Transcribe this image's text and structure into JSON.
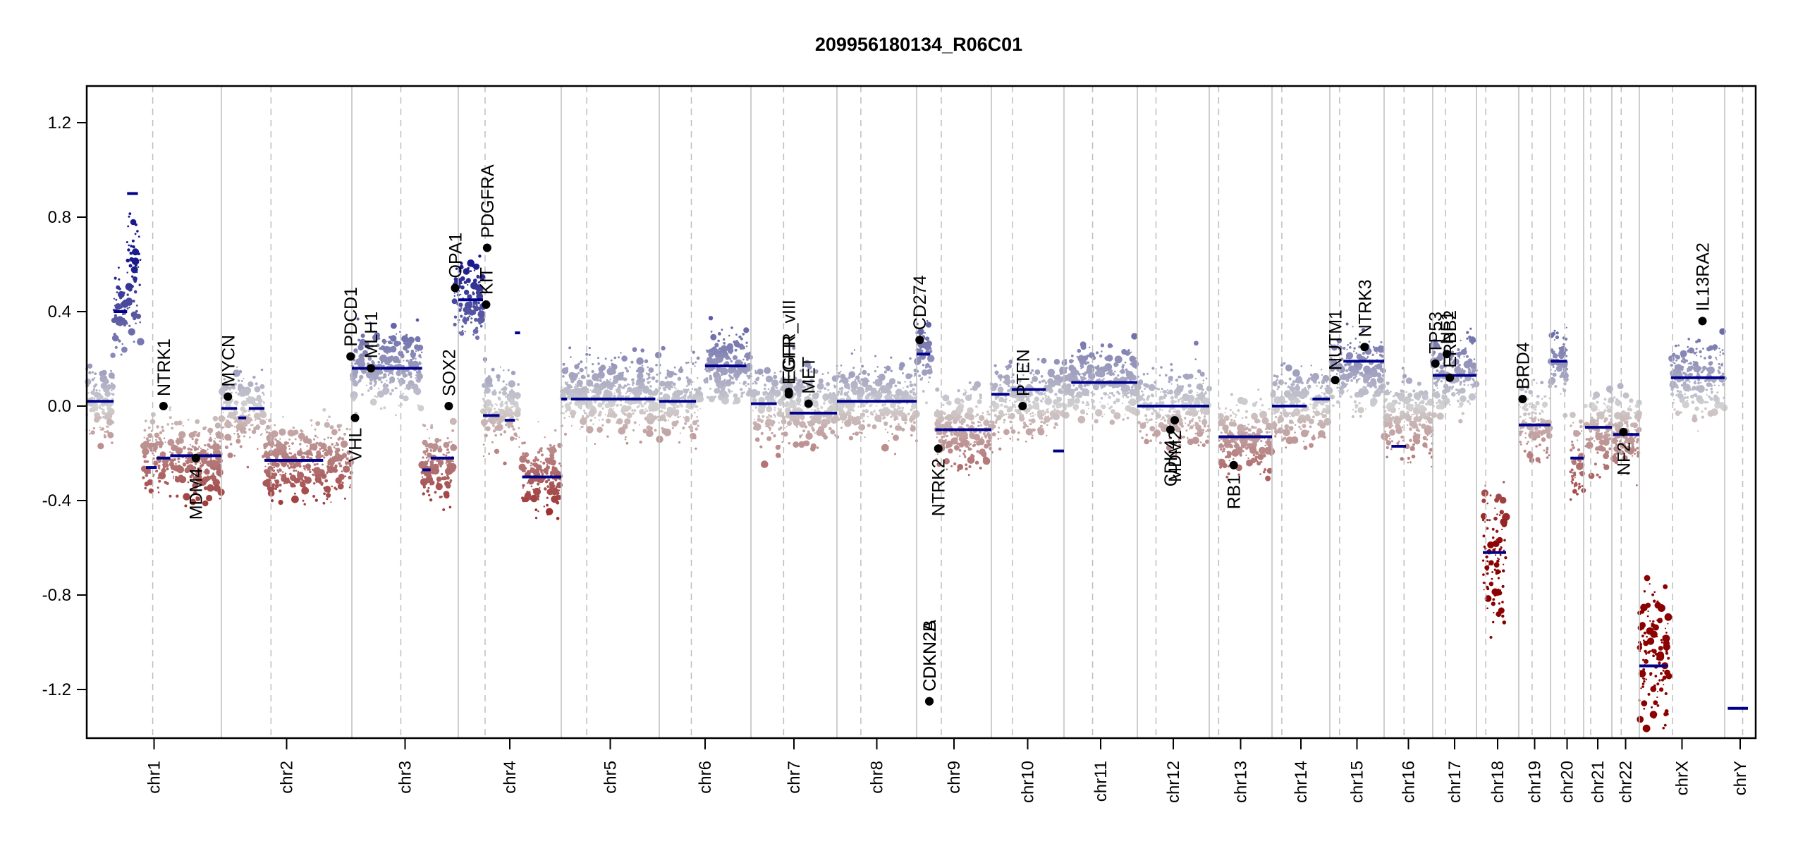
{
  "chart_data": {
    "type": "scatter",
    "title": "209956180134_R06C01",
    "xlabel": "",
    "ylabel": "",
    "ylim": [
      -1.35,
      1.35
    ],
    "y_ticks": [
      1.2,
      0.8,
      0.4,
      0.0,
      -0.4,
      -0.8,
      -1.2
    ],
    "y_tick_labels": [
      "1.2",
      "0.8",
      "0.4",
      "0.0",
      "-0.4",
      "-0.8",
      "-1.2"
    ],
    "grid": false,
    "legend": "none",
    "colors": {
      "gain": "#1a1a8c",
      "loss": "#8b0000",
      "neutral": "#d3d3d3",
      "segment": "#00008b",
      "gene_point": "#000000",
      "chr_boundary": "#bebebe",
      "centromere": "#bebebe"
    },
    "chromosomes": [
      {
        "name": "chr1",
        "label": "chr1",
        "centromere": 0.49
      },
      {
        "name": "chr2",
        "label": "chr2",
        "centromere": 0.38
      },
      {
        "name": "chr3",
        "label": "chr3",
        "centromere": 0.46
      },
      {
        "name": "chr4",
        "label": "chr4",
        "centromere": 0.26
      },
      {
        "name": "chr5",
        "label": "chr5",
        "centromere": 0.26
      },
      {
        "name": "chr6",
        "label": "chr6",
        "centromere": 0.35
      },
      {
        "name": "chr7",
        "label": "chr7",
        "centromere": 0.38
      },
      {
        "name": "chr8",
        "label": "chr8",
        "centromere": 0.3
      },
      {
        "name": "chr9",
        "label": "chr9",
        "centromere": 0.33
      },
      {
        "name": "chr10",
        "label": "chr10",
        "centromere": 0.29
      },
      {
        "name": "chr11",
        "label": "chr11",
        "centromere": 0.39
      },
      {
        "name": "chr12",
        "label": "chr12",
        "centromere": 0.26
      },
      {
        "name": "chr13",
        "label": "chr13",
        "centromere": 0.15
      },
      {
        "name": "chr14",
        "label": "chr14",
        "centromere": 0.17
      },
      {
        "name": "chr15",
        "label": "chr15",
        "centromere": 0.18
      },
      {
        "name": "chr16",
        "label": "chr16",
        "centromere": 0.41
      },
      {
        "name": "chr17",
        "label": "chr17",
        "centromere": 0.29
      },
      {
        "name": "chr18",
        "label": "chr18",
        "centromere": 0.22
      },
      {
        "name": "chr19",
        "label": "chr19",
        "centromere": 0.42
      },
      {
        "name": "chr20",
        "label": "chr20",
        "centromere": 0.43
      },
      {
        "name": "chr21",
        "label": "chr21",
        "centromere": 0.25
      },
      {
        "name": "chr22",
        "label": "chr22",
        "centromere": 0.34
      },
      {
        "name": "chrX",
        "label": "chrX",
        "centromere": 0.39
      },
      {
        "name": "chrY",
        "label": "chrY",
        "centromere": 0.58
      }
    ],
    "segments": [
      {
        "chr": "chr1",
        "start": 0.0,
        "end": 0.2,
        "value": 0.02
      },
      {
        "chr": "chr1",
        "start": 0.2,
        "end": 0.3,
        "value": 0.4
      },
      {
        "chr": "chr1",
        "start": 0.3,
        "end": 0.38,
        "value": 0.9
      },
      {
        "chr": "chr1",
        "start": 0.44,
        "end": 0.52,
        "value": -0.26
      },
      {
        "chr": "chr1",
        "start": 0.52,
        "end": 0.62,
        "value": -0.22
      },
      {
        "chr": "chr1",
        "start": 0.62,
        "end": 1.0,
        "value": -0.21
      },
      {
        "chr": "chr2",
        "start": 0.0,
        "end": 0.12,
        "value": -0.01
      },
      {
        "chr": "chr2",
        "start": 0.13,
        "end": 0.19,
        "value": -0.05
      },
      {
        "chr": "chr2",
        "start": 0.21,
        "end": 0.33,
        "value": -0.01
      },
      {
        "chr": "chr2",
        "start": 0.33,
        "end": 0.78,
        "value": -0.23
      },
      {
        "chr": "chr3",
        "start": 0.0,
        "end": 0.27,
        "value": 0.16
      },
      {
        "chr": "chr3",
        "start": 0.27,
        "end": 0.66,
        "value": 0.16
      },
      {
        "chr": "chr3",
        "start": 0.66,
        "end": 0.74,
        "value": -0.27
      },
      {
        "chr": "chr3",
        "start": 0.74,
        "end": 0.96,
        "value": -0.22
      },
      {
        "chr": "chr4",
        "start": 0.0,
        "end": 0.24,
        "value": 0.45
      },
      {
        "chr": "chr4",
        "start": 0.24,
        "end": 0.4,
        "value": -0.04
      },
      {
        "chr": "chr4",
        "start": 0.45,
        "end": 0.55,
        "value": -0.06
      },
      {
        "chr": "chr4",
        "start": 0.55,
        "end": 0.6,
        "value": 0.31
      },
      {
        "chr": "chr4",
        "start": 0.62,
        "end": 1.0,
        "value": -0.3
      },
      {
        "chr": "chr5",
        "start": 0.0,
        "end": 0.06,
        "value": 0.03
      },
      {
        "chr": "chr5",
        "start": 0.1,
        "end": 0.96,
        "value": 0.03
      },
      {
        "chr": "chr6",
        "start": 0.0,
        "end": 0.4,
        "value": 0.02
      },
      {
        "chr": "chr6",
        "start": 0.5,
        "end": 0.95,
        "value": 0.17
      },
      {
        "chr": "chr7",
        "start": 0.0,
        "end": 0.3,
        "value": 0.01
      },
      {
        "chr": "chr7",
        "start": 0.45,
        "end": 1.0,
        "value": -0.03
      },
      {
        "chr": "chr8",
        "start": 0.0,
        "end": 1.0,
        "value": 0.02
      },
      {
        "chr": "chr9",
        "start": 0.0,
        "end": 0.18,
        "value": 0.22
      },
      {
        "chr": "chr9",
        "start": 0.25,
        "end": 1.0,
        "value": -0.1
      },
      {
        "chr": "chr10",
        "start": 0.0,
        "end": 0.25,
        "value": 0.05
      },
      {
        "chr": "chr10",
        "start": 0.28,
        "end": 0.75,
        "value": 0.07
      },
      {
        "chr": "chr10",
        "start": 0.85,
        "end": 1.0,
        "value": -0.19
      },
      {
        "chr": "chr11",
        "start": 0.1,
        "end": 1.0,
        "value": 0.1
      },
      {
        "chr": "chr12",
        "start": 0.0,
        "end": 1.0,
        "value": 0.0
      },
      {
        "chr": "chr13",
        "start": 0.15,
        "end": 1.0,
        "value": -0.13
      },
      {
        "chr": "chr14",
        "start": 0.0,
        "end": 0.6,
        "value": 0.0
      },
      {
        "chr": "chr14",
        "start": 0.7,
        "end": 1.0,
        "value": 0.03
      },
      {
        "chr": "chr15",
        "start": 0.25,
        "end": 1.0,
        "value": 0.19
      },
      {
        "chr": "chr16",
        "start": 0.15,
        "end": 0.45,
        "value": -0.17
      },
      {
        "chr": "chr17",
        "start": 0.0,
        "end": 1.0,
        "value": 0.13
      },
      {
        "chr": "chr18",
        "start": 0.15,
        "end": 0.7,
        "value": -0.62
      },
      {
        "chr": "chr19",
        "start": 0.0,
        "end": 1.0,
        "value": -0.08
      },
      {
        "chr": "chr20",
        "start": 0.0,
        "end": 0.5,
        "value": 0.19
      },
      {
        "chr": "chr20",
        "start": 0.6,
        "end": 1.0,
        "value": -0.22
      },
      {
        "chr": "chr21",
        "start": 0.05,
        "end": 1.0,
        "value": -0.09
      },
      {
        "chr": "chr22",
        "start": 0.05,
        "end": 1.0,
        "value": -0.12
      },
      {
        "chr": "chrX",
        "start": 0.0,
        "end": 0.33,
        "value": -1.1
      },
      {
        "chr": "chrX",
        "start": 0.37,
        "end": 1.0,
        "value": 0.12
      },
      {
        "chr": "chrY",
        "start": 0.1,
        "end": 0.75,
        "value": -1.28
      }
    ],
    "genes": [
      {
        "name": "NTRK1",
        "chr": "chr1",
        "pos": 0.57,
        "value": 0.0,
        "label_side": "up"
      },
      {
        "name": "MDM4",
        "chr": "chr1",
        "pos": 0.81,
        "value": -0.22,
        "label_side": "down"
      },
      {
        "name": "MYCN",
        "chr": "chr2",
        "pos": 0.05,
        "value": 0.04,
        "label_side": "up"
      },
      {
        "name": "PDCD1",
        "chr": "chr2",
        "pos": 0.99,
        "value": 0.21,
        "label_side": "up"
      },
      {
        "name": "VHL",
        "chr": "chr3",
        "pos": 0.03,
        "value": -0.05,
        "label_side": "down"
      },
      {
        "name": "MLH1",
        "chr": "chr3",
        "pos": 0.18,
        "value": 0.16,
        "label_side": "up"
      },
      {
        "name": "SOX2",
        "chr": "chr3",
        "pos": 0.91,
        "value": 0.0,
        "label_side": "up"
      },
      {
        "name": "OPA1",
        "chr": "chr3",
        "pos": 0.97,
        "value": 0.5,
        "label_side": "up"
      },
      {
        "name": "KIT",
        "chr": "chr4",
        "pos": 0.27,
        "value": 0.43,
        "label_side": "up"
      },
      {
        "name": "PDGFRA",
        "chr": "chr4",
        "pos": 0.28,
        "value": 0.67,
        "label_side": "up"
      },
      {
        "name": "EGFR",
        "chr": "chr7",
        "pos": 0.44,
        "value": 0.05,
        "label_side": "up"
      },
      {
        "name": "EGFR_vIII",
        "chr": "chr7",
        "pos": 0.44,
        "value": 0.06,
        "label_side": "up"
      },
      {
        "name": "MET",
        "chr": "chr7",
        "pos": 0.67,
        "value": 0.01,
        "label_side": "up"
      },
      {
        "name": "CD274",
        "chr": "chr9",
        "pos": 0.04,
        "value": 0.28,
        "label_side": "up"
      },
      {
        "name": "CDKN2A",
        "chr": "chr9",
        "pos": 0.17,
        "value": -1.25,
        "label_side": "up"
      },
      {
        "name": "CDKN2B",
        "chr": "chr9",
        "pos": 0.17,
        "value": -1.25,
        "label_side": "up"
      },
      {
        "name": "NTRK2",
        "chr": "chr9",
        "pos": 0.29,
        "value": -0.18,
        "label_side": "down"
      },
      {
        "name": "PTEN",
        "chr": "chr10",
        "pos": 0.43,
        "value": 0.0,
        "label_side": "up"
      },
      {
        "name": "CDK4",
        "chr": "chr12",
        "pos": 0.46,
        "value": -0.1,
        "label_side": "down"
      },
      {
        "name": "MDM2",
        "chr": "chr12",
        "pos": 0.52,
        "value": -0.06,
        "label_side": "down"
      },
      {
        "name": "RB1",
        "chr": "chr13",
        "pos": 0.39,
        "value": -0.25,
        "label_side": "down"
      },
      {
        "name": "NUTM1",
        "chr": "chr15",
        "pos": 0.1,
        "value": 0.11,
        "label_side": "up"
      },
      {
        "name": "NTRK3",
        "chr": "chr15",
        "pos": 0.64,
        "value": 0.25,
        "label_side": "up"
      },
      {
        "name": "TP53",
        "chr": "chr17",
        "pos": 0.06,
        "value": 0.18,
        "label_side": "up"
      },
      {
        "name": "NF1",
        "chr": "chr17",
        "pos": 0.32,
        "value": 0.22,
        "label_side": "up"
      },
      {
        "name": "ERBB2",
        "chr": "chr17",
        "pos": 0.39,
        "value": 0.12,
        "label_side": "up"
      },
      {
        "name": "BRD4",
        "chr": "chr19",
        "pos": 0.12,
        "value": 0.03,
        "label_side": "up"
      },
      {
        "name": "NF2",
        "chr": "chr22",
        "pos": 0.42,
        "value": -0.11,
        "label_side": "down"
      },
      {
        "name": "IL13RA2",
        "chr": "chrX",
        "pos": 0.74,
        "value": 0.36,
        "label_side": "up"
      }
    ],
    "bin_profile": [
      {
        "chr": "chr1",
        "parts": [
          [
            0.0,
            0.2,
            0.02
          ],
          [
            0.2,
            0.3,
            0.4
          ],
          [
            0.3,
            0.4,
            0.55
          ],
          [
            0.42,
            1.0,
            -0.22
          ]
        ]
      },
      {
        "chr": "chr2",
        "parts": [
          [
            0.0,
            0.33,
            -0.01
          ],
          [
            0.33,
            1.0,
            -0.23
          ]
        ]
      },
      {
        "chr": "chr3",
        "parts": [
          [
            0.0,
            0.66,
            0.16
          ],
          [
            0.66,
            0.96,
            -0.24
          ],
          [
            0.96,
            1.0,
            0.45
          ]
        ]
      },
      {
        "chr": "chr4",
        "parts": [
          [
            0.0,
            0.24,
            0.45
          ],
          [
            0.24,
            0.6,
            0.0
          ],
          [
            0.62,
            1.0,
            -0.3
          ]
        ]
      },
      {
        "chr": "chr5",
        "parts": [
          [
            0.0,
            1.0,
            0.05
          ]
        ]
      },
      {
        "chr": "chr6",
        "parts": [
          [
            0.0,
            0.45,
            0.02
          ],
          [
            0.5,
            1.0,
            0.17
          ]
        ]
      },
      {
        "chr": "chr7",
        "parts": [
          [
            0.0,
            1.0,
            0.0
          ]
        ]
      },
      {
        "chr": "chr8",
        "parts": [
          [
            0.0,
            1.0,
            0.03
          ]
        ]
      },
      {
        "chr": "chr9",
        "parts": [
          [
            0.0,
            0.2,
            0.22
          ],
          [
            0.25,
            1.0,
            -0.1
          ]
        ]
      },
      {
        "chr": "chr10",
        "parts": [
          [
            0.0,
            1.0,
            0.03
          ]
        ]
      },
      {
        "chr": "chr11",
        "parts": [
          [
            0.0,
            1.0,
            0.1
          ]
        ]
      },
      {
        "chr": "chr12",
        "parts": [
          [
            0.0,
            1.0,
            0.0
          ]
        ]
      },
      {
        "chr": "chr13",
        "parts": [
          [
            0.15,
            1.0,
            -0.13
          ]
        ]
      },
      {
        "chr": "chr14",
        "parts": [
          [
            0.0,
            1.0,
            0.01
          ]
        ]
      },
      {
        "chr": "chr15",
        "parts": [
          [
            0.0,
            1.0,
            0.15
          ]
        ]
      },
      {
        "chr": "chr16",
        "parts": [
          [
            0.0,
            1.0,
            -0.05
          ]
        ]
      },
      {
        "chr": "chr17",
        "parts": [
          [
            0.0,
            1.0,
            0.13
          ]
        ]
      },
      {
        "chr": "chr18",
        "parts": [
          [
            0.15,
            0.7,
            -0.62
          ]
        ]
      },
      {
        "chr": "chr19",
        "parts": [
          [
            0.0,
            1.0,
            -0.06
          ]
        ]
      },
      {
        "chr": "chr20",
        "parts": [
          [
            0.0,
            0.5,
            0.19
          ],
          [
            0.6,
            1.0,
            -0.22
          ]
        ]
      },
      {
        "chr": "chr21",
        "parts": [
          [
            0.05,
            1.0,
            -0.09
          ]
        ]
      },
      {
        "chr": "chr22",
        "parts": [
          [
            0.05,
            1.0,
            -0.1
          ]
        ]
      },
      {
        "chr": "chrX",
        "parts": [
          [
            0.0,
            0.35,
            -1.05
          ],
          [
            0.37,
            1.0,
            0.12
          ]
        ]
      }
    ]
  }
}
